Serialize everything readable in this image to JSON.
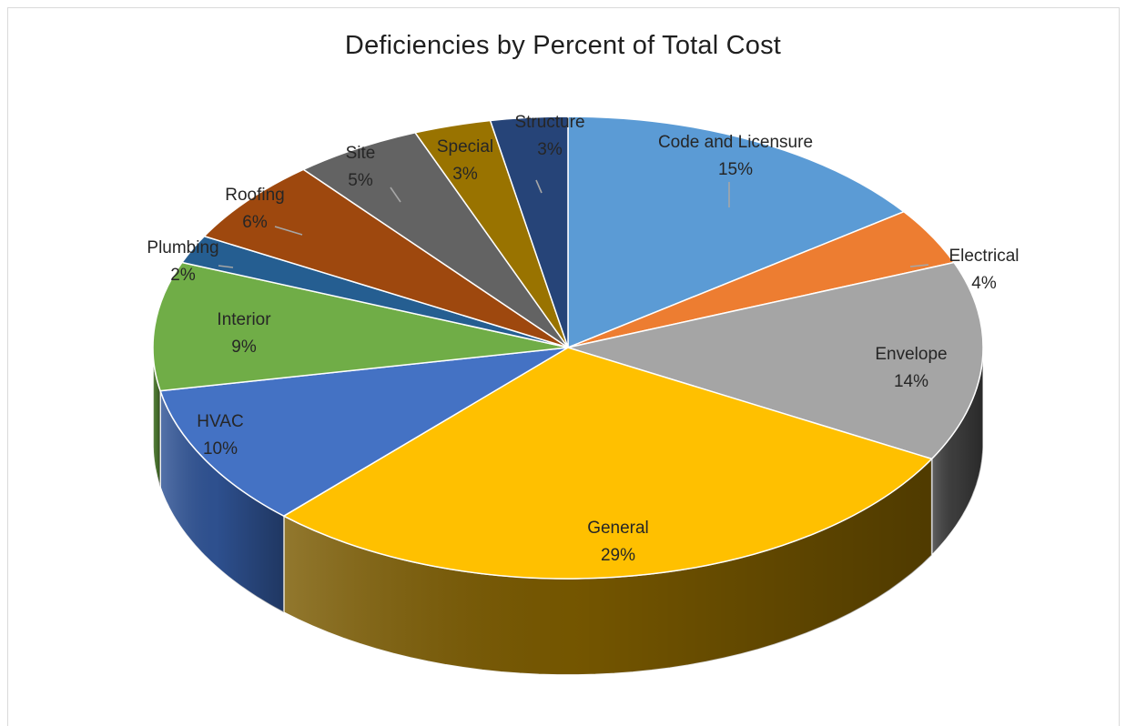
{
  "chart_data": {
    "type": "pie",
    "title": "Deficiencies by Percent of Total Cost",
    "three_d": true,
    "start_angle_degrees": 0,
    "direction": "clockwise",
    "slices": [
      {
        "name": "Code and Licensure",
        "value": 15,
        "label": "15%",
        "color": "#5b9bd5",
        "side_color": "#3f6f9d"
      },
      {
        "name": "Electrical",
        "value": 4,
        "label": "4%",
        "color": "#ed7d31",
        "side_color": "#a9561e"
      },
      {
        "name": "Envelope",
        "value": 14,
        "label": "14%",
        "color": "#a5a5a5",
        "side_color": "#3f3f3f"
      },
      {
        "name": "General",
        "value": 29,
        "label": "29%",
        "color": "#ffc000",
        "side_color": "#7a5a00"
      },
      {
        "name": "HVAC",
        "value": 10,
        "label": "10%",
        "color": "#4472c4",
        "side_color": "#305496"
      },
      {
        "name": "Interior",
        "value": 9,
        "label": "9%",
        "color": "#70ad47",
        "side_color": "#4e7a31"
      },
      {
        "name": "Plumbing",
        "value": 2,
        "label": "2%",
        "color": "#255e91",
        "side_color": "#1a4266"
      },
      {
        "name": "Roofing",
        "value": 6,
        "label": "6%",
        "color": "#9e480e",
        "side_color": "#6d320a"
      },
      {
        "name": "Site",
        "value": 5,
        "label": "5%",
        "color": "#636363",
        "side_color": "#434343"
      },
      {
        "name": "Special",
        "value": 3,
        "label": "3%",
        "color": "#997300",
        "side_color": "#6a5000"
      },
      {
        "name": "Structure",
        "value": 3,
        "label": "3%",
        "color": "#264478",
        "side_color": "#1a2f54"
      }
    ],
    "legend": "none"
  }
}
